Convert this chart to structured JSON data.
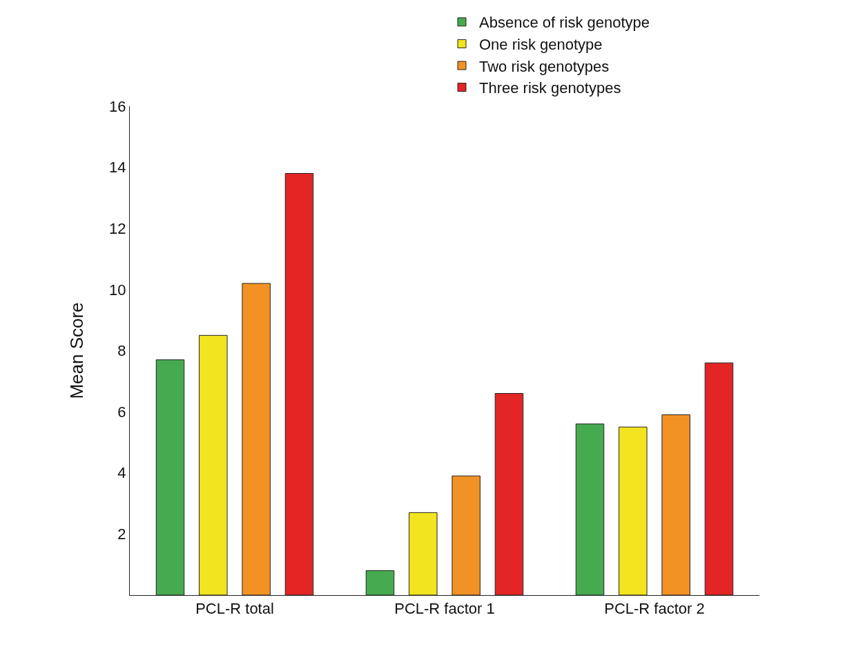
{
  "chart_data": {
    "type": "bar",
    "ylabel": "Mean Score",
    "categories": [
      "PCL-R total",
      "PCL-R factor 1",
      "PCL-R factor 2"
    ],
    "series": [
      {
        "name": "Absence of risk genotype",
        "color": "#46aa50",
        "values": [
          7.7,
          0.8,
          5.6
        ]
      },
      {
        "name": "One risk genotype",
        "color": "#f2e41e",
        "values": [
          8.5,
          2.7,
          5.5
        ]
      },
      {
        "name": "Two risk genotypes",
        "color": "#f29224",
        "values": [
          10.2,
          3.9,
          5.9
        ]
      },
      {
        "name": "Three risk genotypes",
        "color": "#e32526",
        "values": [
          13.8,
          6.6,
          7.6
        ]
      }
    ],
    "ylim": [
      0,
      16
    ],
    "yticks": [
      2,
      4,
      6,
      8,
      10,
      12,
      14,
      16
    ],
    "legend": "top right"
  }
}
